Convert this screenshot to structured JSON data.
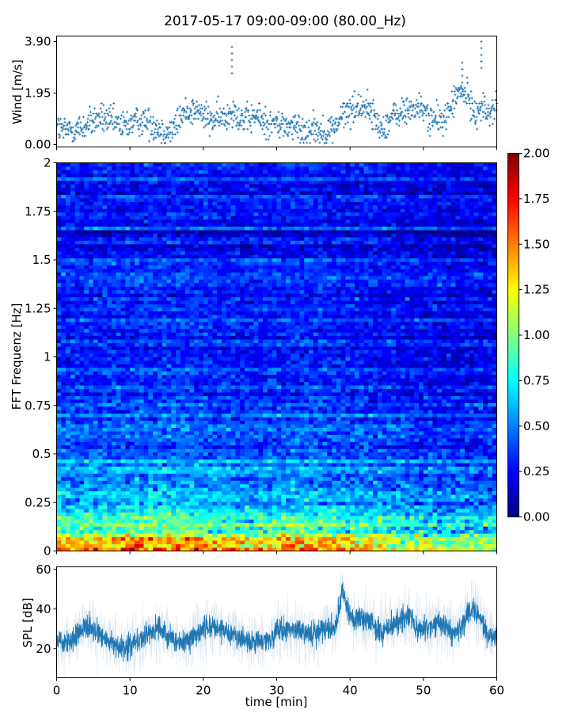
{
  "chart_data": [
    {
      "type": "scatter",
      "title": "2017-05-17 09:00-09:00 (80.00_Hz)",
      "xlabel": "",
      "ylabel": "Wind [m/s]",
      "xlim": [
        0,
        60
      ],
      "ylim": [
        -0.09,
        4.11
      ],
      "ytick_labels": [
        "0.00",
        "1.95",
        "3.90"
      ],
      "yticks": [
        0,
        1.95,
        3.9
      ],
      "xticks": [
        0,
        10,
        20,
        30,
        40,
        50,
        60
      ],
      "marker": "+",
      "color": "#1f77b4",
      "x_minutes": [
        0,
        1,
        2,
        3,
        4,
        5,
        6,
        7,
        8,
        9,
        10,
        11,
        12,
        13,
        14,
        15,
        16,
        17,
        18,
        19,
        20,
        21,
        22,
        23,
        24,
        25,
        26,
        27,
        28,
        29,
        30,
        31,
        32,
        33,
        34,
        35,
        36,
        37,
        38,
        39,
        40,
        41,
        42,
        43,
        44,
        45,
        46,
        47,
        48,
        49,
        50,
        51,
        52,
        53,
        54,
        55,
        56,
        57,
        58,
        59,
        60
      ],
      "mean_values": [
        0.7,
        0.5,
        0.6,
        0.6,
        0.7,
        0.9,
        1.0,
        0.9,
        0.8,
        0.7,
        0.8,
        0.9,
        0.9,
        0.8,
        0.6,
        0.5,
        0.6,
        1.1,
        1.3,
        1.3,
        1.1,
        0.9,
        1.0,
        1.0,
        1.4,
        1.0,
        0.9,
        1.1,
        0.9,
        0.8,
        0.8,
        0.7,
        0.7,
        0.6,
        0.5,
        0.7,
        0.5,
        0.5,
        0.7,
        1.1,
        1.3,
        1.4,
        1.5,
        1.2,
        0.6,
        0.8,
        1.1,
        1.2,
        1.3,
        1.4,
        1.3,
        1.0,
        0.9,
        1.0,
        1.6,
        2.0,
        1.8,
        1.2,
        1.4,
        1.2,
        1.5
      ],
      "peaks": [
        {
          "x": 23.9,
          "y": 3.7
        },
        {
          "x": 57.9,
          "y": 3.9
        },
        {
          "x": 55.3,
          "y": 3.1
        }
      ]
    },
    {
      "type": "heatmap",
      "xlabel": "",
      "ylabel": "FFT Frequenz [Hz]",
      "xlim": [
        0,
        60
      ],
      "ylim": [
        0,
        2
      ],
      "ytick_labels": [
        "0",
        "0.25",
        "0.5",
        "0.75",
        "1",
        "1.25",
        "1.5",
        "1.75",
        "2"
      ],
      "yticks": [
        0,
        0.25,
        0.5,
        0.75,
        1,
        1.25,
        1.5,
        1.75,
        2
      ],
      "colormap": "jet",
      "clim": [
        0,
        2
      ],
      "colorbar_tick_labels": [
        "0.00",
        "0.25",
        "0.50",
        "0.75",
        "1.00",
        "1.25",
        "1.50",
        "1.75",
        "2.00"
      ],
      "colorbar_ticks": [
        0,
        0.25,
        0.5,
        0.75,
        1,
        1.25,
        1.5,
        1.75,
        2
      ],
      "freq_profile_hz": [
        0,
        0.05,
        0.1,
        0.25,
        0.5,
        1,
        1.5,
        2
      ],
      "freq_profile_level": [
        1.5,
        1.2,
        0.9,
        0.6,
        0.42,
        0.32,
        0.27,
        0.25
      ],
      "time_modulation": [
        1.1,
        1.05,
        1.1,
        1.15,
        1.1,
        1.0,
        1.05,
        1.1,
        1.0,
        0.95,
        0.85,
        0.8,
        0.85
      ]
    },
    {
      "type": "line",
      "xlabel": "time [min]",
      "ylabel": "SPL [dB]",
      "xlim": [
        0,
        60
      ],
      "ylim": [
        5.3,
        61.3
      ],
      "ytick_labels": [
        "20",
        "40",
        "60"
      ],
      "yticks": [
        20,
        40,
        60
      ],
      "xtick_labels": [
        "0",
        "10",
        "20",
        "30",
        "40",
        "50",
        "60"
      ],
      "xticks": [
        0,
        10,
        20,
        30,
        40,
        50,
        60
      ],
      "color": "#1f77b4",
      "x_minutes": [
        0,
        1,
        2,
        3,
        4,
        5,
        6,
        7,
        8,
        9,
        10,
        11,
        12,
        13,
        14,
        15,
        16,
        17,
        18,
        19,
        20,
        21,
        22,
        23,
        24,
        25,
        26,
        27,
        28,
        29,
        30,
        31,
        32,
        33,
        34,
        35,
        36,
        37,
        38,
        39,
        40,
        41,
        42,
        43,
        44,
        45,
        46,
        47,
        48,
        49,
        50,
        51,
        52,
        53,
        54,
        55,
        56,
        57,
        58,
        59,
        60
      ],
      "mean_values": [
        24,
        23,
        24,
        28,
        32,
        30,
        27,
        24,
        21,
        20,
        21,
        24,
        26,
        28,
        31,
        26,
        24,
        23,
        24,
        27,
        30,
        31,
        30,
        28,
        27,
        25,
        24,
        23,
        24,
        25,
        30,
        30,
        29,
        29,
        28,
        28,
        29,
        30,
        30,
        50,
        36,
        35,
        34,
        33,
        28,
        31,
        32,
        34,
        37,
        30,
        30,
        31,
        34,
        32,
        28,
        29,
        38,
        39,
        33,
        26,
        27
      ]
    }
  ]
}
